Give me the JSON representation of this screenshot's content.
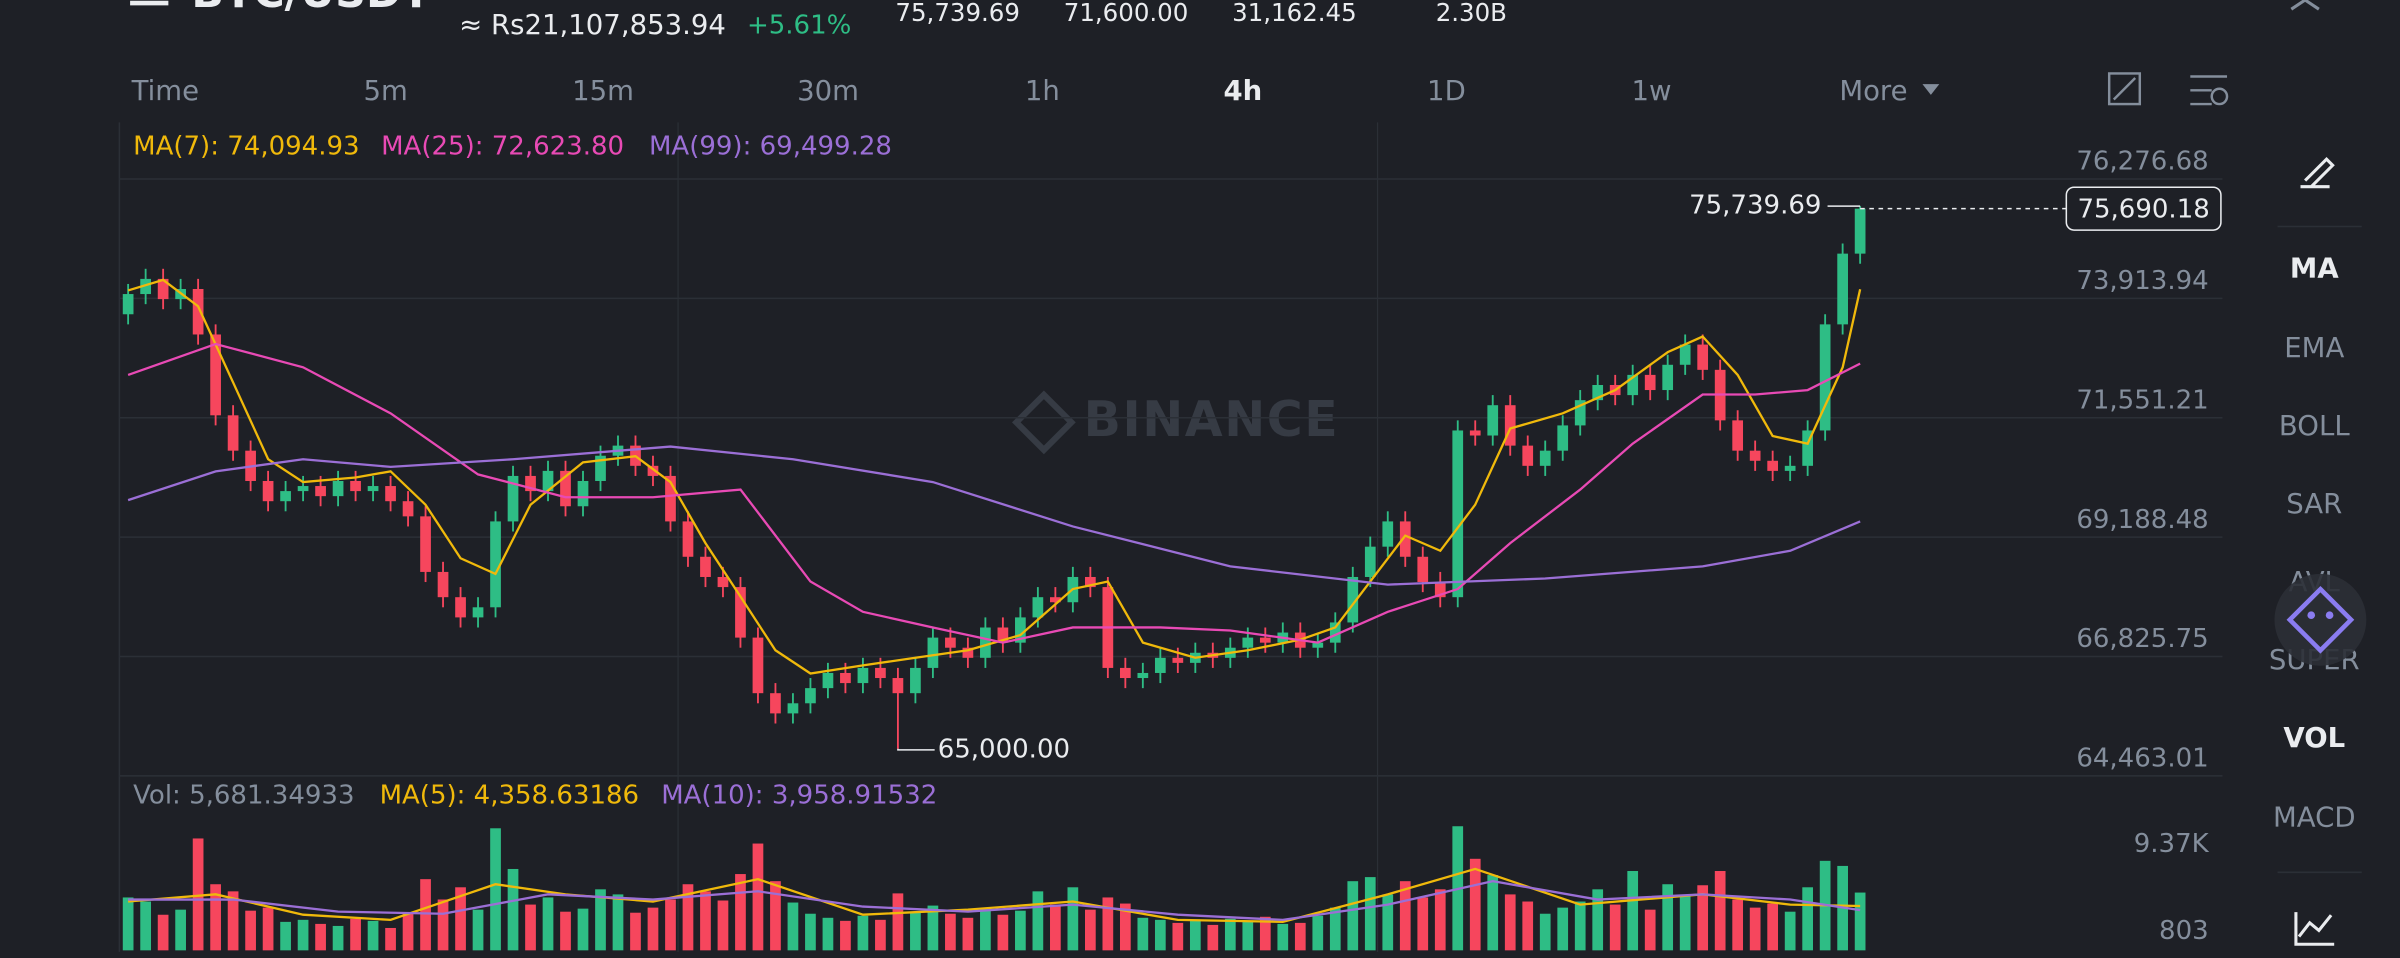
{
  "header": {
    "symbol": "BTC/USDT",
    "fiat_price": "≈ Rs21,107,853.94",
    "change": "+5.61%",
    "stats": [
      "75,739.69",
      "71,600.00",
      "31,162.45",
      "2.30B"
    ]
  },
  "tabs": [
    {
      "label": "Time"
    },
    {
      "label": "5m"
    },
    {
      "label": "15m"
    },
    {
      "label": "30m"
    },
    {
      "label": "1h"
    },
    {
      "label": "4h",
      "active": true
    },
    {
      "label": "1D"
    },
    {
      "label": "1w"
    },
    {
      "label": "More"
    }
  ],
  "indicators": [
    {
      "label": "MA",
      "active": true
    },
    {
      "label": "EMA"
    },
    {
      "label": "BOLL"
    },
    {
      "label": "SAR"
    },
    {
      "label": "AVL"
    },
    {
      "label": "SUPER"
    },
    {
      "label": "VOL",
      "active": true
    },
    {
      "label": "MACD"
    }
  ],
  "chart_data": [
    {
      "type": "candlestick",
      "watermark": "BINANCE",
      "up_color": "#2ebd85",
      "down_color": "#f6465d",
      "grid": true,
      "ylim": [
        64463.01,
        77397
      ],
      "yticks": [
        {
          "value": 76276.68,
          "label": "76,276.68"
        },
        {
          "value": 73913.94,
          "label": "73,913.94"
        },
        {
          "value": 71551.21,
          "label": "71,551.21"
        },
        {
          "value": 69188.48,
          "label": "69,188.48"
        },
        {
          "value": 66825.75,
          "label": "66,825.75"
        },
        {
          "value": 64463.01,
          "label": "64,463.01"
        }
      ],
      "open": [
        73600,
        74000,
        74300,
        73900,
        74100,
        73200,
        71600,
        70900,
        70300,
        69900,
        70100,
        70200,
        70000,
        70300,
        70100,
        70200,
        69900,
        69600,
        68500,
        68000,
        67600,
        67800,
        69500,
        70400,
        70100,
        70500,
        69800,
        70300,
        70800,
        71000,
        70600,
        70400,
        69500,
        68800,
        68400,
        68200,
        67200,
        66100,
        65700,
        65900,
        66200,
        66500,
        66300,
        66600,
        66400,
        66100,
        66600,
        67200,
        67000,
        66800,
        67400,
        67100,
        67600,
        68000,
        67900,
        68400,
        68200,
        66600,
        66400,
        66500,
        66800,
        66700,
        66900,
        66800,
        67000,
        67200,
        67100,
        67300,
        67000,
        67100,
        67500,
        68400,
        69000,
        69500,
        68800,
        68300,
        68000,
        71300,
        71200,
        71800,
        71000,
        70600,
        70900,
        71400,
        71900,
        72200,
        72000,
        72400,
        72100,
        72600,
        73000,
        72500,
        71500,
        70900,
        70700,
        70500,
        70600,
        71300,
        73400,
        74800
      ],
      "high": [
        74200,
        74500,
        74500,
        74300,
        74300,
        73400,
        71800,
        71100,
        70500,
        70300,
        70400,
        70400,
        70500,
        70500,
        70400,
        70400,
        70100,
        69800,
        68700,
        68200,
        68000,
        69700,
        70600,
        70600,
        70700,
        70700,
        70500,
        71000,
        71200,
        71200,
        70800,
        70600,
        69700,
        69000,
        68600,
        68400,
        67400,
        66300,
        66100,
        66400,
        66700,
        66700,
        66800,
        66800,
        66600,
        66800,
        67400,
        67400,
        67200,
        67600,
        67600,
        67800,
        68200,
        68200,
        68600,
        68600,
        68400,
        66800,
        66700,
        67000,
        67000,
        67100,
        67100,
        67200,
        67400,
        67400,
        67500,
        67500,
        67300,
        67700,
        68600,
        69200,
        69700,
        69700,
        69000,
        68500,
        71500,
        71500,
        72000,
        72000,
        71200,
        71100,
        71600,
        72100,
        72400,
        72400,
        72600,
        72600,
        72800,
        73200,
        73200,
        72700,
        71700,
        71100,
        70900,
        70800,
        71500,
        73600,
        75000,
        75739.69
      ],
      "low": [
        73400,
        73800,
        73700,
        73700,
        73000,
        71400,
        70700,
        70100,
        69700,
        69700,
        69900,
        69800,
        69800,
        69900,
        69900,
        69700,
        69400,
        68300,
        67800,
        67400,
        67400,
        67600,
        69300,
        69900,
        69900,
        69600,
        69600,
        70100,
        70600,
        70400,
        70200,
        69300,
        68600,
        68200,
        68000,
        67000,
        65900,
        65500,
        65500,
        65700,
        66000,
        66100,
        66100,
        66200,
        65000,
        65900,
        66400,
        66800,
        66600,
        66600,
        66900,
        66900,
        67400,
        67700,
        67700,
        68000,
        66400,
        66200,
        66200,
        66300,
        66500,
        66500,
        66600,
        66600,
        66800,
        66900,
        66900,
        66800,
        66800,
        66900,
        67300,
        68200,
        68800,
        68600,
        68100,
        67800,
        67800,
        71000,
        71000,
        70800,
        70400,
        70400,
        70700,
        71200,
        71700,
        71800,
        71800,
        71900,
        71900,
        72400,
        72300,
        71300,
        70700,
        70500,
        70300,
        70300,
        70400,
        71100,
        73200,
        74600
      ],
      "close": [
        74000,
        74300,
        73900,
        74100,
        73200,
        71600,
        70900,
        70300,
        69900,
        70100,
        70200,
        70000,
        70300,
        70100,
        70200,
        69900,
        69600,
        68500,
        68000,
        67600,
        67800,
        69500,
        70400,
        70100,
        70500,
        69800,
        70300,
        70800,
        71000,
        70600,
        70400,
        69500,
        68800,
        68400,
        68200,
        67200,
        66100,
        65700,
        65900,
        66200,
        66500,
        66300,
        66600,
        66400,
        66100,
        66600,
        67200,
        67000,
        66800,
        67400,
        67100,
        67600,
        68000,
        67900,
        68400,
        68200,
        66600,
        66400,
        66500,
        66800,
        66700,
        66900,
        66800,
        67000,
        67200,
        67100,
        67300,
        67000,
        67100,
        67500,
        68400,
        69000,
        69500,
        68800,
        68300,
        68000,
        71300,
        71200,
        71800,
        71000,
        70600,
        70900,
        71400,
        71900,
        72200,
        72000,
        72400,
        72100,
        72600,
        73000,
        72500,
        71500,
        70900,
        70700,
        70500,
        70600,
        71300,
        73400,
        74800,
        75690.18
      ],
      "series": [
        {
          "name": "MA(7): 74,094.93",
          "color": "#f0b90b",
          "x": [
            0,
            2,
            4,
            6,
            8,
            10,
            13,
            15,
            17,
            19,
            21,
            23,
            26,
            29,
            31,
            33,
            35,
            37,
            39,
            42,
            45,
            48,
            51,
            54,
            56,
            58,
            61,
            64,
            67,
            69,
            71,
            73,
            75,
            77,
            79,
            82,
            85,
            88,
            90,
            92,
            94,
            96,
            98,
            99
          ],
          "values": [
            74070,
            74280,
            73760,
            72250,
            70730,
            70280,
            70370,
            70490,
            69830,
            68770,
            68460,
            69830,
            70670,
            70790,
            70280,
            69070,
            68010,
            66950,
            66490,
            66650,
            66800,
            66950,
            67250,
            68160,
            68310,
            67100,
            66800,
            66950,
            67160,
            67400,
            68310,
            69220,
            68920,
            69830,
            71340,
            71640,
            72100,
            72850,
            73160,
            72400,
            71190,
            71040,
            72550,
            74094.93
          ]
        },
        {
          "name": "MA(25): 72,623.80",
          "color": "#e84ab5",
          "x": [
            0,
            5,
            10,
            15,
            20,
            25,
            30,
            35,
            39,
            42,
            46,
            50,
            54,
            59,
            63,
            68,
            72,
            76,
            79,
            83,
            86,
            90,
            93,
            96,
            99
          ],
          "values": [
            72400,
            73010,
            72550,
            71640,
            70430,
            69980,
            69980,
            70130,
            68310,
            67710,
            67400,
            67100,
            67400,
            67400,
            67340,
            67100,
            67710,
            68160,
            69070,
            70130,
            71040,
            72010,
            72010,
            72100,
            72623.8
          ]
        },
        {
          "name": "MA(99): 69,499.28",
          "color": "#9b6fd6",
          "x": [
            0,
            5,
            10,
            15,
            22,
            31,
            38,
            46,
            54,
            63,
            72,
            81,
            90,
            95,
            99
          ],
          "values": [
            69920,
            70490,
            70730,
            70580,
            70730,
            70980,
            70730,
            70280,
            69400,
            68610,
            68250,
            68370,
            68610,
            68920,
            69499.28
          ]
        }
      ],
      "annotations": [
        {
          "value": 75739.69,
          "label": "75,739.69"
        },
        {
          "value": 65000,
          "label": "65,000.00"
        },
        {
          "value": 75690.18,
          "label": "75,690.18"
        }
      ]
    },
    {
      "type": "bar",
      "label": "Vol: 5,681.34933",
      "grid": false,
      "ylim": [
        0,
        16700
      ],
      "yticks": [
        {
          "value": 9370,
          "label": "9.37K"
        },
        803
      ],
      "values": [
        5200,
        4800,
        3500,
        4000,
        11000,
        6500,
        5800,
        3900,
        4200,
        2800,
        3000,
        2600,
        2400,
        3100,
        2900,
        2200,
        3600,
        7000,
        5000,
        6200,
        4000,
        12000,
        8000,
        4500,
        5200,
        3800,
        4100,
        6000,
        5500,
        3700,
        4200,
        5000,
        6500,
        5800,
        4900,
        7500,
        10500,
        6800,
        4700,
        3600,
        3200,
        2900,
        3400,
        3000,
        5600,
        3800,
        4400,
        3600,
        3200,
        4100,
        3500,
        3900,
        5800,
        4500,
        6200,
        4000,
        5200,
        4600,
        3200,
        3000,
        2700,
        2900,
        2500,
        3100,
        2800,
        3300,
        2600,
        2700,
        3400,
        4200,
        6800,
        7200,
        5500,
        6800,
        5200,
        6000,
        12200,
        9000,
        7400,
        5500,
        4800,
        3600,
        4200,
        4800,
        6000,
        4500,
        7800,
        4000,
        6500,
        5300,
        6400,
        7800,
        5000,
        4200,
        4600,
        3800,
        6200,
        8800,
        8300,
        5681.34933
      ],
      "series": [
        {
          "name": "MA(5): 4,358.63186",
          "color": "#f0b90b",
          "x": [
            0,
            5,
            10,
            15,
            21,
            25,
            30,
            36,
            42,
            48,
            54,
            60,
            66,
            72,
            77,
            83,
            90,
            95,
            99
          ],
          "values": [
            4800,
            5500,
            3500,
            3000,
            6500,
            5500,
            4800,
            7000,
            3500,
            4000,
            4800,
            3000,
            2800,
            5500,
            8000,
            4500,
            5500,
            4500,
            4358.63186
          ]
        },
        {
          "name": "MA(10): 3,958.91532",
          "color": "#9b6fd6",
          "x": [
            0,
            6,
            12,
            18,
            24,
            30,
            36,
            42,
            48,
            54,
            60,
            66,
            72,
            78,
            84,
            90,
            95,
            99
          ],
          "values": [
            5000,
            5000,
            3800,
            3600,
            5500,
            5000,
            5800,
            4300,
            3800,
            4500,
            3500,
            3000,
            4500,
            6800,
            5000,
            5500,
            5000,
            3958.91532
          ]
        }
      ]
    }
  ]
}
